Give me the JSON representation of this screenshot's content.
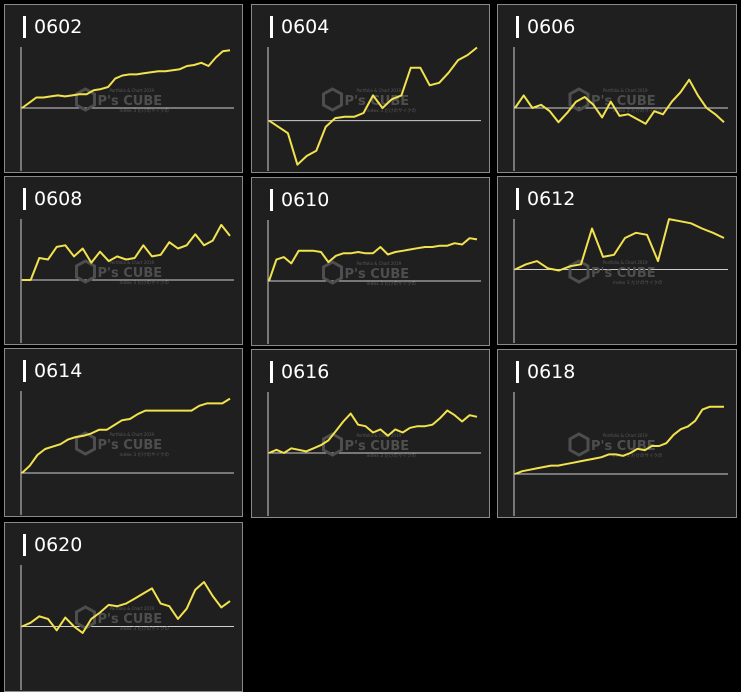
{
  "watermark": {
    "top": "Portfolio & Chart 2019",
    "main": "P's CUBE",
    "sub": "index 3 だけのサイクの"
  },
  "colors": {
    "line": "#f2e24e",
    "axis": "#cfcfcf",
    "panel": "#1f1f1f",
    "border": "#8a8a8a"
  },
  "chart_data": [
    {
      "type": "line",
      "title": "0602",
      "ylim": [
        -60,
        60
      ],
      "values": [
        0,
        5,
        10,
        10,
        11,
        12,
        11,
        12,
        13,
        13,
        17,
        18,
        20,
        28,
        31,
        32,
        32,
        33,
        34,
        35,
        35,
        36,
        37,
        40,
        41,
        43,
        40,
        48,
        54,
        55
      ]
    },
    {
      "type": "line",
      "title": "0604",
      "ylim": [
        -40,
        60
      ],
      "values": [
        0,
        -5,
        -10,
        -35,
        -28,
        -24,
        -5,
        2,
        3,
        3,
        6,
        20,
        10,
        17,
        20,
        42,
        42,
        28,
        30,
        38,
        48,
        52,
        58
      ]
    },
    {
      "type": "line",
      "title": "0606",
      "ylim": [
        -40,
        40
      ],
      "values": [
        0,
        8,
        0,
        2,
        -2,
        -9,
        -3,
        4,
        7,
        2,
        -6,
        4,
        -5,
        -4,
        -7,
        -10,
        -2,
        -4,
        4,
        10,
        18,
        8,
        0,
        -4,
        -9
      ]
    },
    {
      "type": "line",
      "title": "0608",
      "ylim": [
        -40,
        40
      ],
      "values": [
        0,
        0,
        14,
        13,
        21,
        22,
        15,
        20,
        11,
        18,
        12,
        15,
        13,
        14,
        22,
        15,
        16,
        24,
        20,
        22,
        29,
        22,
        25,
        35,
        28
      ]
    },
    {
      "type": "line",
      "title": "0610",
      "ylim": [
        -50,
        50
      ],
      "values": [
        0,
        17,
        19,
        14,
        24,
        24,
        24,
        23,
        15,
        20,
        22,
        22,
        23,
        22,
        22,
        27,
        21,
        23,
        24,
        25,
        26,
        27,
        27,
        28,
        28,
        30,
        29,
        34,
        33
      ]
    },
    {
      "type": "line",
      "title": "0612",
      "ylim": [
        -70,
        50
      ],
      "values": [
        0,
        5,
        8,
        1,
        -1,
        3,
        5,
        39,
        12,
        14,
        30,
        35,
        33,
        8,
        48,
        46,
        44,
        39,
        35,
        30
      ]
    },
    {
      "type": "line",
      "title": "0614",
      "ylim": [
        -35,
        70
      ],
      "values": [
        0,
        6,
        15,
        20,
        22,
        24,
        28,
        30,
        31,
        33,
        36,
        36,
        40,
        44,
        45,
        49,
        52,
        52,
        52,
        52,
        52,
        52,
        52,
        56,
        58,
        58,
        58,
        62
      ]
    },
    {
      "type": "line",
      "title": "0616",
      "ylim": [
        -40,
        40
      ],
      "values": [
        0,
        2,
        0,
        3,
        2,
        1,
        3,
        5,
        8,
        14,
        20,
        25,
        18,
        17,
        13,
        15,
        11,
        15,
        13,
        16,
        17,
        17,
        18,
        22,
        27,
        24,
        20,
        24,
        23
      ]
    },
    {
      "type": "line",
      "title": "0618",
      "ylim": [
        -30,
        60
      ],
      "values": [
        0,
        2,
        3,
        4,
        5,
        6,
        6,
        7,
        8,
        9,
        10,
        11,
        12,
        14,
        14,
        13,
        15,
        18,
        17,
        20,
        20,
        22,
        28,
        32,
        34,
        38,
        46,
        48,
        48,
        48
      ]
    },
    {
      "type": "line",
      "title": "0620",
      "ylim": [
        -50,
        50
      ],
      "values": [
        0,
        3,
        8,
        6,
        -3,
        7,
        0,
        -5,
        6,
        11,
        17,
        16,
        18,
        22,
        26,
        30,
        18,
        16,
        6,
        14,
        29,
        35,
        24,
        15,
        20
      ]
    }
  ]
}
